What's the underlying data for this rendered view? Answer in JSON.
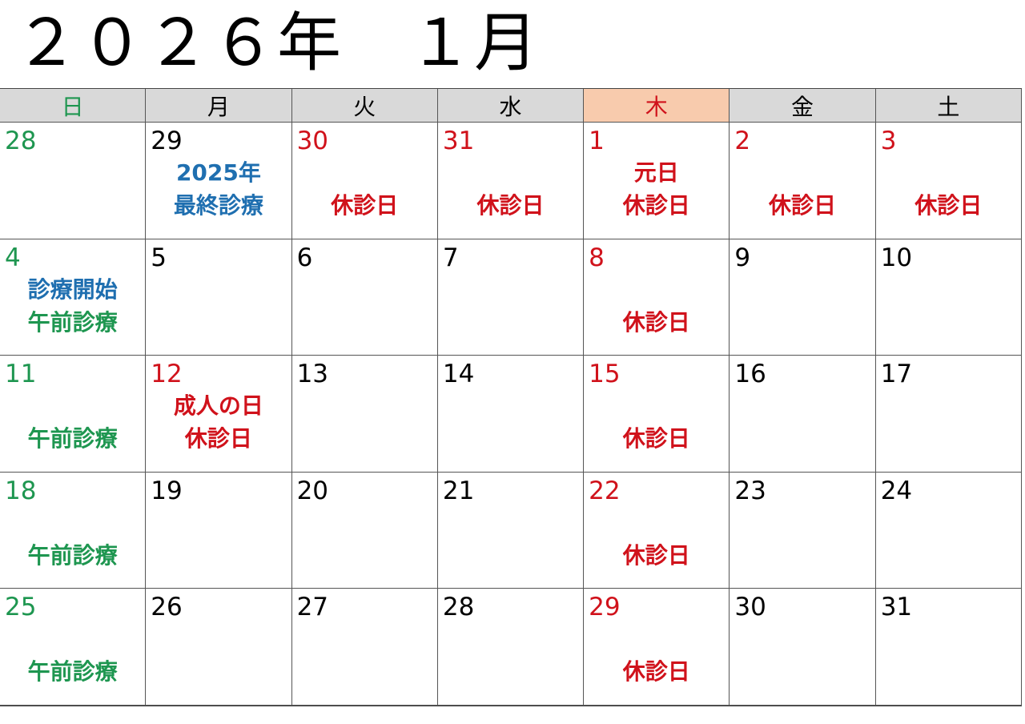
{
  "title": "２０２６年　１月",
  "weekdays": [
    {
      "label": "日",
      "color": "#1e9650"
    },
    {
      "label": "月",
      "color": "#000000"
    },
    {
      "label": "火",
      "color": "#000000"
    },
    {
      "label": "水",
      "color": "#000000"
    },
    {
      "label": "木",
      "color": "#d0121b"
    },
    {
      "label": "金",
      "color": "#000000"
    },
    {
      "label": "土",
      "color": "#000000"
    }
  ],
  "weeks": [
    [
      {
        "day": 28,
        "color": "#1e9650",
        "notes": []
      },
      {
        "day": 29,
        "color": "#000000",
        "notes": [
          {
            "text": "2025年",
            "color": "#1f6fb0"
          },
          {
            "text": "最終診療",
            "color": "#1f6fb0"
          }
        ]
      },
      {
        "day": 30,
        "color": "#d0121b",
        "notes": [
          {
            "text": "休診日",
            "color": "#d0121b"
          }
        ]
      },
      {
        "day": 31,
        "color": "#d0121b",
        "notes": [
          {
            "text": "休診日",
            "color": "#d0121b"
          }
        ]
      },
      {
        "day": 1,
        "color": "#d0121b",
        "notes": [
          {
            "text": "元日",
            "color": "#d0121b"
          },
          {
            "text": "休診日",
            "color": "#d0121b"
          }
        ]
      },
      {
        "day": 2,
        "color": "#d0121b",
        "notes": [
          {
            "text": "休診日",
            "color": "#d0121b"
          }
        ]
      },
      {
        "day": 3,
        "color": "#d0121b",
        "notes": [
          {
            "text": "休診日",
            "color": "#d0121b"
          }
        ]
      }
    ],
    [
      {
        "day": 4,
        "color": "#1e9650",
        "notes": [
          {
            "text": "診療開始",
            "color": "#1f6fb0"
          },
          {
            "text": "午前診療",
            "color": "#1e9650"
          }
        ]
      },
      {
        "day": 5,
        "color": "#000000",
        "notes": []
      },
      {
        "day": 6,
        "color": "#000000",
        "notes": []
      },
      {
        "day": 7,
        "color": "#000000",
        "notes": []
      },
      {
        "day": 8,
        "color": "#d0121b",
        "notes": [
          {
            "text": "休診日",
            "color": "#d0121b"
          }
        ]
      },
      {
        "day": 9,
        "color": "#000000",
        "notes": []
      },
      {
        "day": 10,
        "color": "#000000",
        "notes": []
      }
    ],
    [
      {
        "day": 11,
        "color": "#1e9650",
        "notes": [
          {
            "text": "午前診療",
            "color": "#1e9650"
          }
        ]
      },
      {
        "day": 12,
        "color": "#d0121b",
        "notes": [
          {
            "text": "成人の日",
            "color": "#d0121b"
          },
          {
            "text": "休診日",
            "color": "#d0121b"
          }
        ]
      },
      {
        "day": 13,
        "color": "#000000",
        "notes": []
      },
      {
        "day": 14,
        "color": "#000000",
        "notes": []
      },
      {
        "day": 15,
        "color": "#d0121b",
        "notes": [
          {
            "text": "休診日",
            "color": "#d0121b"
          }
        ]
      },
      {
        "day": 16,
        "color": "#000000",
        "notes": []
      },
      {
        "day": 17,
        "color": "#000000",
        "notes": []
      }
    ],
    [
      {
        "day": 18,
        "color": "#1e9650",
        "notes": [
          {
            "text": "午前診療",
            "color": "#1e9650"
          }
        ]
      },
      {
        "day": 19,
        "color": "#000000",
        "notes": []
      },
      {
        "day": 20,
        "color": "#000000",
        "notes": []
      },
      {
        "day": 21,
        "color": "#000000",
        "notes": []
      },
      {
        "day": 22,
        "color": "#d0121b",
        "notes": [
          {
            "text": "休診日",
            "color": "#d0121b"
          }
        ]
      },
      {
        "day": 23,
        "color": "#000000",
        "notes": []
      },
      {
        "day": 24,
        "color": "#000000",
        "notes": []
      }
    ],
    [
      {
        "day": 25,
        "color": "#1e9650",
        "notes": [
          {
            "text": "午前診療",
            "color": "#1e9650"
          }
        ]
      },
      {
        "day": 26,
        "color": "#000000",
        "notes": []
      },
      {
        "day": 27,
        "color": "#000000",
        "notes": []
      },
      {
        "day": 28,
        "color": "#000000",
        "notes": []
      },
      {
        "day": 29,
        "color": "#d0121b",
        "notes": [
          {
            "text": "休診日",
            "color": "#d0121b"
          }
        ]
      },
      {
        "day": 30,
        "color": "#000000",
        "notes": []
      },
      {
        "day": 31,
        "color": "#000000",
        "notes": []
      }
    ]
  ]
}
